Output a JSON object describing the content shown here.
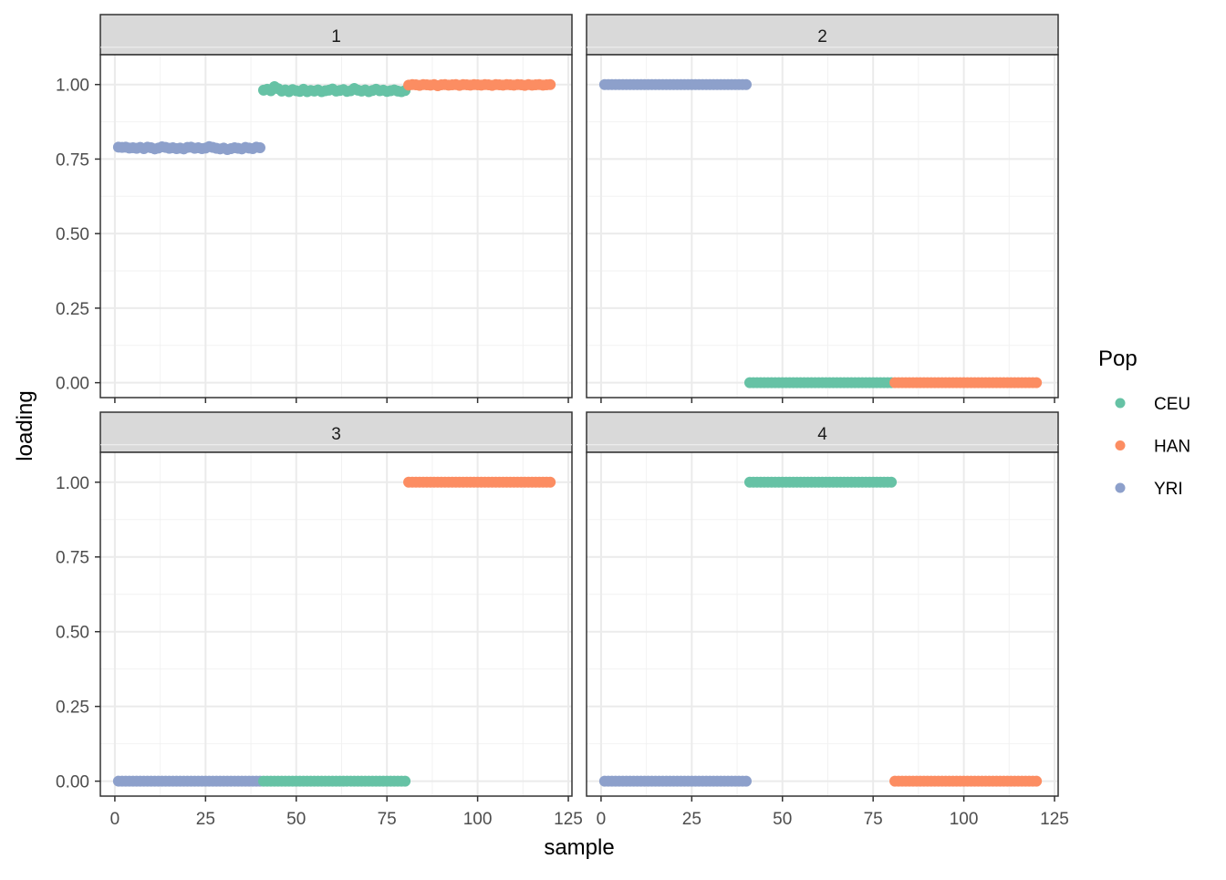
{
  "chart_data": {
    "type": "scatter",
    "xlabel": "sample",
    "ylabel": "loading",
    "xlim": [
      -4,
      126
    ],
    "ylim": [
      -0.05,
      1.1
    ],
    "x_ticks": [
      0,
      25,
      50,
      75,
      100,
      125
    ],
    "x_tick_labels": [
      "0",
      "25",
      "50",
      "75",
      "100",
      "125"
    ],
    "y_ticks": [
      0,
      0.25,
      0.5,
      0.75,
      1
    ],
    "y_tick_labels": [
      "0.00",
      "0.25",
      "0.50",
      "0.75",
      "1.00"
    ],
    "grid": true,
    "legend": {
      "title": "Pop",
      "position": "right",
      "entries": [
        {
          "label": "CEU",
          "color": "#66C2A5"
        },
        {
          "label": "HAN",
          "color": "#FC8D62"
        },
        {
          "label": "YRI",
          "color": "#8DA0CB"
        }
      ]
    },
    "group_sample_ranges": {
      "YRI": [
        1,
        40
      ],
      "CEU": [
        41,
        80
      ],
      "HAN": [
        81,
        120
      ]
    },
    "panels": [
      {
        "label": "1",
        "series": [
          {
            "name": "YRI",
            "values": [
              0.79,
              0.789,
              0.79,
              0.787,
              0.788,
              0.786,
              0.789,
              0.785,
              0.79,
              0.788,
              0.784,
              0.787,
              0.791,
              0.789,
              0.786,
              0.788,
              0.785,
              0.787,
              0.784,
              0.789,
              0.79,
              0.786,
              0.788,
              0.785,
              0.787,
              0.792,
              0.789,
              0.786,
              0.784,
              0.787,
              0.782,
              0.785,
              0.788,
              0.786,
              0.784,
              0.789,
              0.787,
              0.785,
              0.79,
              0.788
            ]
          },
          {
            "name": "CEU",
            "values": [
              0.981,
              0.984,
              0.979,
              0.993,
              0.986,
              0.978,
              0.982,
              0.976,
              0.983,
              0.979,
              0.977,
              0.984,
              0.976,
              0.98,
              0.978,
              0.982,
              0.976,
              0.979,
              0.981,
              0.985,
              0.978,
              0.98,
              0.983,
              0.977,
              0.979,
              0.987,
              0.981,
              0.978,
              0.982,
              0.976,
              0.98,
              0.984,
              0.979,
              0.981,
              0.977,
              0.979,
              0.982,
              0.978,
              0.976,
              0.98
            ]
          },
          {
            "name": "HAN",
            "values": [
              0.998,
              1.0,
              0.999,
              0.997,
              1.0,
              0.999,
              0.998,
              1.0,
              0.996,
              0.999,
              1.0,
              0.998,
              0.999,
              1.0,
              0.997,
              1.0,
              0.999,
              0.998,
              1.0,
              0.999,
              0.998,
              1.0,
              0.999,
              0.997,
              1.0,
              0.999,
              0.998,
              1.0,
              0.999,
              0.998,
              1.0,
              0.999,
              0.997,
              1.0,
              0.998,
              0.999,
              1.0,
              0.998,
              0.999,
              1.0
            ]
          }
        ]
      },
      {
        "label": "2",
        "series": [
          {
            "name": "YRI",
            "constant": 1.0
          },
          {
            "name": "CEU",
            "constant": 0.0
          },
          {
            "name": "HAN",
            "constant": 0.0
          }
        ]
      },
      {
        "label": "3",
        "series": [
          {
            "name": "YRI",
            "constant": 0.0
          },
          {
            "name": "CEU",
            "constant": 0.0
          },
          {
            "name": "HAN",
            "constant": 1.0
          }
        ]
      },
      {
        "label": "4",
        "series": [
          {
            "name": "YRI",
            "constant": 0.0
          },
          {
            "name": "CEU",
            "constant": 1.0
          },
          {
            "name": "HAN",
            "constant": 0.0
          }
        ]
      }
    ]
  }
}
